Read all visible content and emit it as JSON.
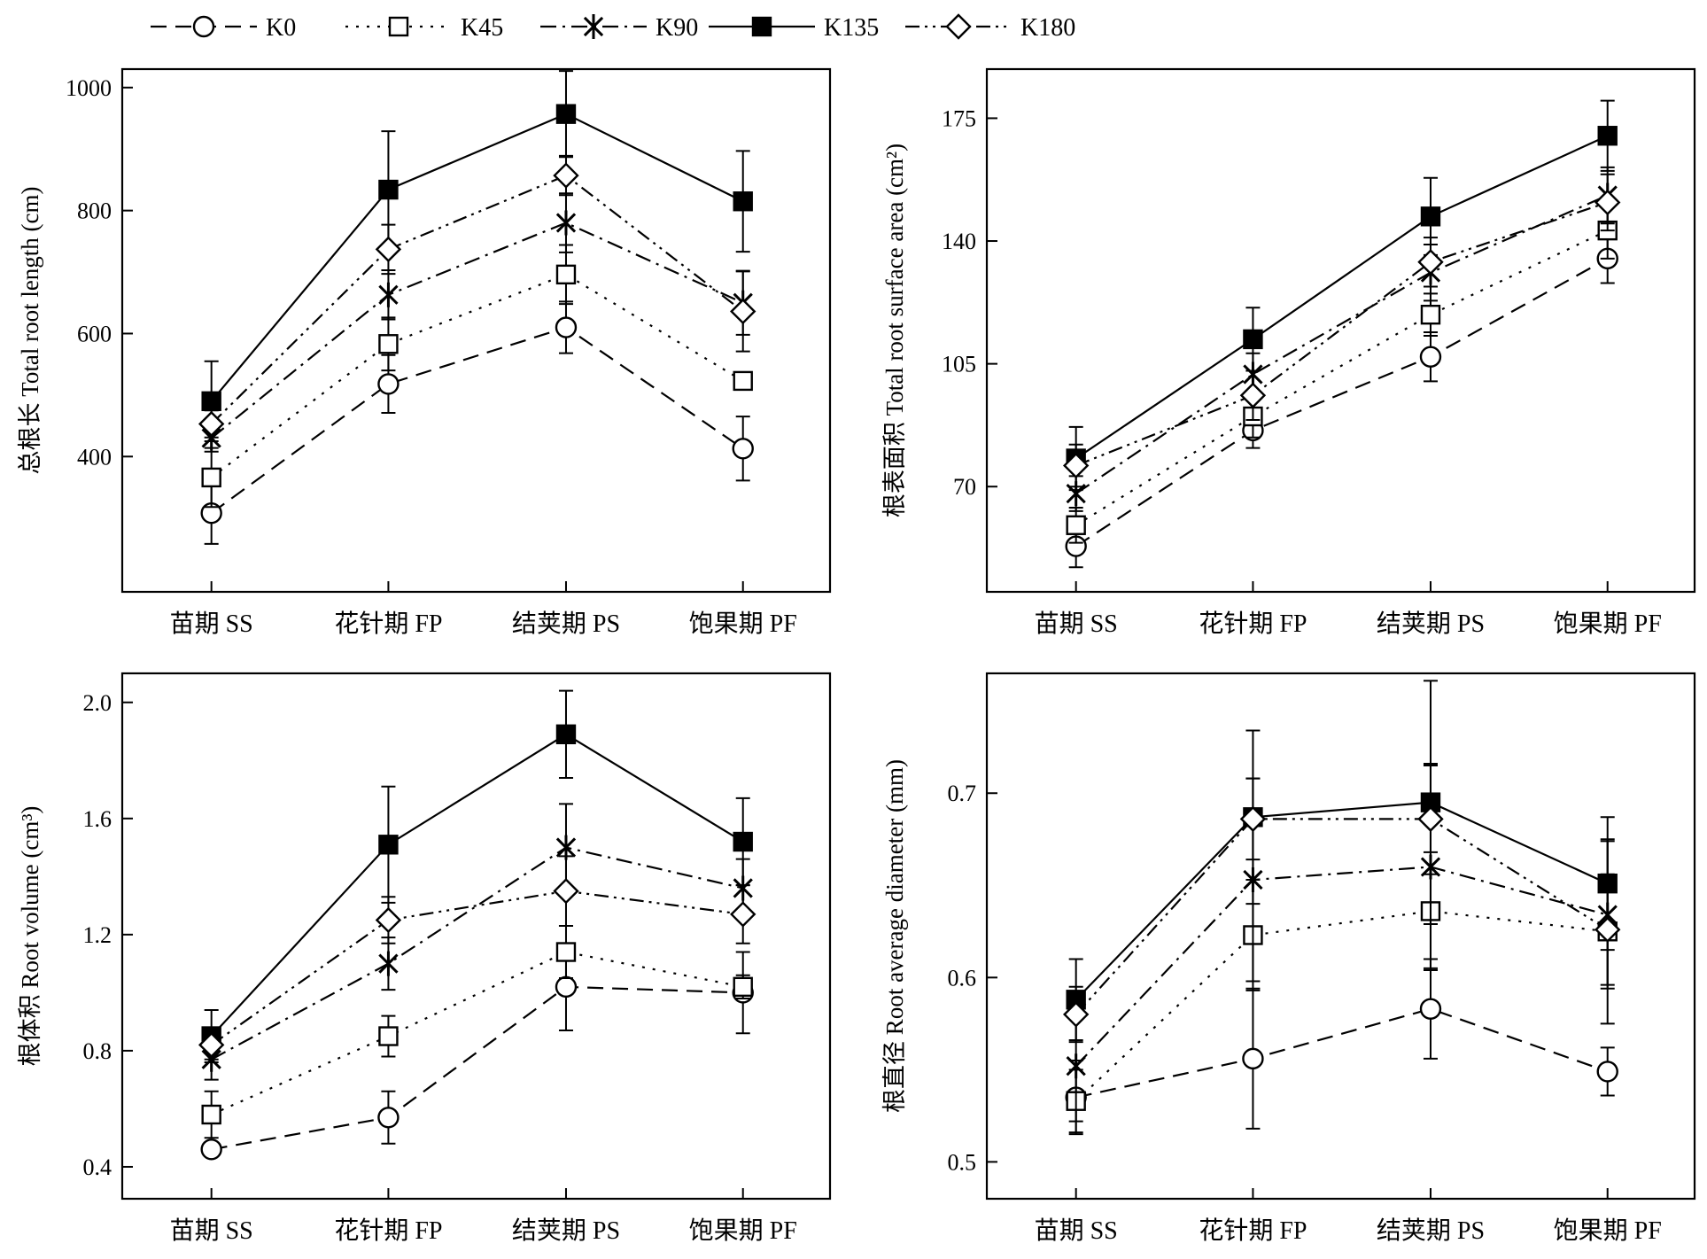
{
  "legend": [
    {
      "key": "K0",
      "label": "K0",
      "marker": "circle",
      "dash": "dash"
    },
    {
      "key": "K45",
      "label": "K45",
      "marker": "square-open",
      "dash": "dot"
    },
    {
      "key": "K90",
      "label": "K90",
      "marker": "asterisk",
      "dash": "dashdot"
    },
    {
      "key": "K135",
      "label": "K135",
      "marker": "square-filled",
      "dash": "solid"
    },
    {
      "key": "K180",
      "label": "K180",
      "marker": "diamond",
      "dash": "dashdotdot"
    }
  ],
  "chart_data": [
    {
      "type": "line",
      "id": "total-root-length",
      "ylabel": "总根长 Total root length (cm)",
      "categories": [
        "苗期 SS",
        "花针期 FP",
        "结荚期 PS",
        "饱果期 PF"
      ],
      "ylim": [
        180,
        1030
      ],
      "yticks": [
        400,
        600,
        800,
        1000
      ],
      "yticklabels": [
        "400",
        "600",
        "800",
        "1000"
      ],
      "series": [
        {
          "name": "K0",
          "values": [
            308,
            518,
            610,
            413
          ],
          "errors": [
            50,
            47,
            42,
            52
          ]
        },
        {
          "name": "K45",
          "values": [
            366,
            583,
            696,
            523
          ],
          "errors": [
            48,
            43,
            48,
            14
          ]
        },
        {
          "name": "K90",
          "values": [
            430,
            663,
            780,
            650
          ],
          "errors": [
            22,
            40,
            48,
            52
          ]
        },
        {
          "name": "K135",
          "values": [
            490,
            834,
            957,
            815
          ],
          "errors": [
            65,
            95,
            70,
            82
          ]
        },
        {
          "name": "K180",
          "values": [
            453,
            737,
            857,
            636
          ],
          "errors": [
            22,
            40,
            32,
            65
          ]
        }
      ]
    },
    {
      "type": "line",
      "id": "total-root-surface-area",
      "ylabel": "根表面积 Total root surface area (cm²)",
      "categories": [
        "苗期 SS",
        "花针期 FP",
        "结荚期 PS",
        "饱果期 PF"
      ],
      "ylim": [
        40,
        189
      ],
      "yticks": [
        70,
        105,
        140,
        175
      ],
      "yticklabels": [
        "70",
        "105",
        "140",
        "175"
      ],
      "series": [
        {
          "name": "K0",
          "values": [
            53,
            86,
            107,
            135
          ],
          "errors": [
            6,
            5,
            7,
            7
          ]
        },
        {
          "name": "K45",
          "values": [
            59,
            90,
            119,
            143
          ],
          "errors": [
            5,
            6,
            6,
            8
          ]
        },
        {
          "name": "K90",
          "values": [
            68,
            102,
            131,
            153
          ],
          "errors": [
            5,
            6,
            8,
            8
          ]
        },
        {
          "name": "K135",
          "values": [
            78,
            112,
            147,
            170
          ],
          "errors": [
            9,
            9,
            11,
            10
          ]
        },
        {
          "name": "K180",
          "values": [
            76,
            96,
            134,
            151
          ],
          "errors": [
            6,
            7,
            7,
            8
          ]
        }
      ]
    },
    {
      "type": "line",
      "id": "root-volume",
      "ylabel": "根体积 Root volume (cm³)",
      "categories": [
        "苗期 SS",
        "花针期 FP",
        "结荚期 PS",
        "饱果期 PF"
      ],
      "ylim": [
        0.29,
        2.1
      ],
      "yticks": [
        0.4,
        0.8,
        1.2,
        1.6,
        2.0
      ],
      "yticklabels": [
        "0.4",
        "0.8",
        "1.2",
        "1.6",
        "2.0"
      ],
      "series": [
        {
          "name": "K0",
          "values": [
            0.46,
            0.57,
            1.02,
            1.0
          ],
          "errors": [
            0.02,
            0.09,
            0.15,
            0.14
          ]
        },
        {
          "name": "K45",
          "values": [
            0.58,
            0.85,
            1.14,
            1.02
          ],
          "errors": [
            0.08,
            0.07,
            0.09,
            0.04
          ]
        },
        {
          "name": "K90",
          "values": [
            0.77,
            1.1,
            1.5,
            1.36
          ],
          "errors": [
            0.07,
            0.09,
            0.15,
            0.1
          ]
        },
        {
          "name": "K135",
          "values": [
            0.85,
            1.51,
            1.89,
            1.52
          ],
          "errors": [
            0.09,
            0.2,
            0.15,
            0.15
          ]
        },
        {
          "name": "K180",
          "values": [
            0.82,
            1.25,
            1.35,
            1.27
          ],
          "errors": [
            0.05,
            0.08,
            0.12,
            0.1
          ]
        }
      ]
    },
    {
      "type": "line",
      "id": "root-average-diameter",
      "ylabel": "根直径 Root average diameter (mm)",
      "categories": [
        "苗期 SS",
        "花针期 FP",
        "结荚期 PS",
        "饱果期 PF"
      ],
      "ylim": [
        0.48,
        0.765
      ],
      "yticks": [
        0.5,
        0.6,
        0.7
      ],
      "yticklabels": [
        "0.5",
        "0.6",
        "0.7"
      ],
      "series": [
        {
          "name": "K0",
          "values": [
            0.535,
            0.556,
            0.583,
            0.549
          ],
          "errors": [
            0.02,
            0.038,
            0.027,
            0.013
          ]
        },
        {
          "name": "K45",
          "values": [
            0.533,
            0.623,
            0.636,
            0.625
          ],
          "errors": [
            0.017,
            0.03,
            0.032,
            0.05
          ]
        },
        {
          "name": "K90",
          "values": [
            0.552,
            0.653,
            0.66,
            0.634
          ],
          "errors": [
            0.03,
            0.055,
            0.055,
            0.04
          ]
        },
        {
          "name": "K135",
          "values": [
            0.588,
            0.687,
            0.695,
            0.651
          ],
          "errors": [
            0.022,
            0.047,
            0.066,
            0.036
          ]
        },
        {
          "name": "K180",
          "values": [
            0.58,
            0.686,
            0.686,
            0.626
          ],
          "errors": [
            0.015,
            0.022,
            0.03,
            0.03
          ]
        }
      ]
    }
  ]
}
